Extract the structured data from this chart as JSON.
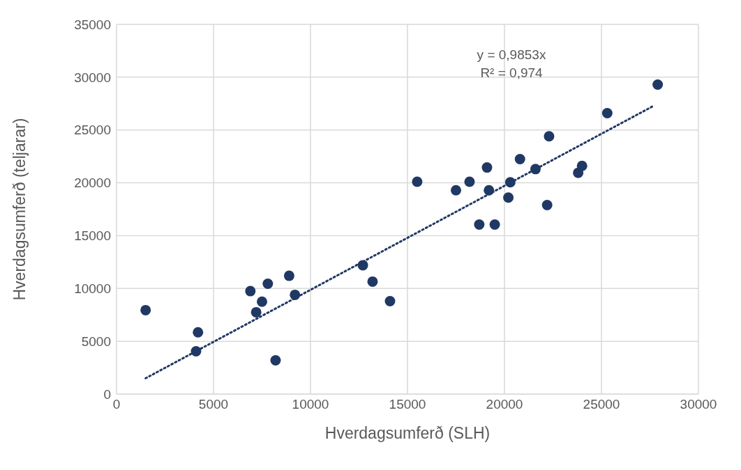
{
  "chart_data": {
    "type": "scatter",
    "xlabel": "Hverdagsumferð (SLH)",
    "ylabel": "Hverdagsumferð (teljarar)",
    "xlim": [
      0,
      30000
    ],
    "xticks": [
      0,
      5000,
      10000,
      15000,
      20000,
      25000,
      30000
    ],
    "ylim": [
      0,
      35000
    ],
    "yticks": [
      0,
      5000,
      10000,
      15000,
      20000,
      25000,
      30000,
      35000
    ],
    "grid": true,
    "marker": "circle",
    "annotations": [
      "y = 0,9853x",
      "R² = 0,974"
    ],
    "series": [
      {
        "color": "#203864",
        "x": [
          1500,
          4100,
          4200,
          6900,
          7200,
          7500,
          7800,
          8200,
          8900,
          9200,
          12700,
          13200,
          14100,
          15500,
          17500,
          18200,
          18700,
          19100,
          19200,
          19500,
          20200,
          20300,
          20800,
          21600,
          22200,
          22300,
          23800,
          24000,
          25300,
          27900
        ],
        "values": [
          7950,
          4050,
          5850,
          9750,
          7750,
          8750,
          10450,
          3200,
          11200,
          9400,
          12200,
          10650,
          8800,
          20100,
          19300,
          20100,
          16050,
          21450,
          19300,
          16050,
          18600,
          20050,
          22250,
          21300,
          17900,
          24400,
          20950,
          21600,
          26600,
          29300
        ]
      },
      {
        "type": "line",
        "color": "#203864",
        "line_style": "dotted",
        "marker": "none",
        "x": [
          1500,
          27700
        ],
        "values": [
          1500,
          27300
        ]
      }
    ]
  }
}
